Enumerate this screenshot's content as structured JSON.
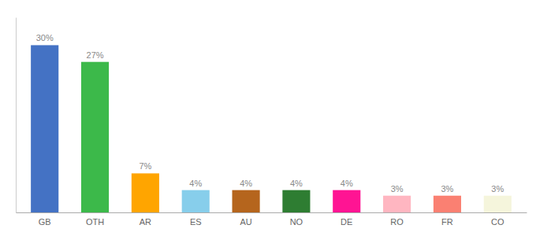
{
  "chart_data": {
    "type": "bar",
    "categories": [
      "GB",
      "OTH",
      "AR",
      "ES",
      "AU",
      "NO",
      "DE",
      "RO",
      "FR",
      "CO"
    ],
    "values": [
      30,
      27,
      7,
      4,
      4,
      4,
      4,
      3,
      3,
      3
    ],
    "value_labels": [
      "30%",
      "27%",
      "7%",
      "4%",
      "4%",
      "4%",
      "4%",
      "3%",
      "3%",
      "3%"
    ],
    "colors": [
      "#4472C4",
      "#3CB94A",
      "#FFA500",
      "#87CEEB",
      "#B5651D",
      "#2E7D32",
      "#FF1493",
      "#FFB6C1",
      "#FA8072",
      "#F5F5DC"
    ],
    "ylim": [
      0,
      35
    ],
    "data_labels": true,
    "tick_labels": "x",
    "grid": false
  }
}
